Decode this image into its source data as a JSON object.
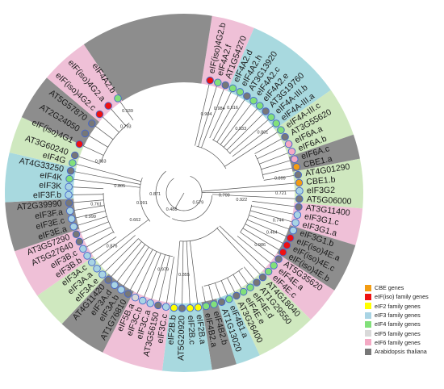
{
  "colors": {
    "CBE": "#f39c12",
    "eIFiso": "#ee1111",
    "eIF2": "#ffff00",
    "eIF3": "#a9d4e4",
    "eIF4": "#82e07a",
    "eIF5": "#d9d9d9",
    "eIF6": "#f4a9c4",
    "AT": "#777777",
    "sector_eIF3": "#a8d9df",
    "sector_eIF4": "#cfe8bf",
    "sector_eIF6": "#efc0d7",
    "sector_AT": "#8d8d8d"
  },
  "legend": [
    {
      "label": "CBE genes",
      "color": "#f39c12"
    },
    {
      "label": "eIF(iso) family genes",
      "color": "#ee1111"
    },
    {
      "label": "eIF2 family genes",
      "color": "#ffff00"
    },
    {
      "label": "eIF3 family genes",
      "color": "#a9d4e4"
    },
    {
      "label": "eIF4 family genes",
      "color": "#82e07a"
    },
    {
      "label": "eIF5 family genes",
      "color": "#d9d9d9"
    },
    {
      "label": "eIF6 family genes",
      "color": "#f4a9c4"
    },
    {
      "label": "Arabidopsis thaliana",
      "color": "#777777"
    }
  ],
  "leaves": [
    {
      "label": "eIF(iso)4G2.b",
      "angle": -77,
      "node": "eIFiso"
    },
    {
      "label": "eIF4A2.f",
      "angle": -73,
      "node": "eIF4"
    },
    {
      "label": "AT1G54270",
      "angle": -69,
      "node": "AT"
    },
    {
      "label": "eIF4A2.d",
      "angle": -65,
      "node": "eIF4"
    },
    {
      "label": "eIF4A2.h",
      "angle": -61,
      "node": "eIF4"
    },
    {
      "label": "AT3G13920",
      "angle": -57,
      "node": "AT"
    },
    {
      "label": "eIF4A2.c",
      "angle": -53,
      "node": "eIF4"
    },
    {
      "label": "eIF4A2.e",
      "angle": -49,
      "node": "eIF4"
    },
    {
      "label": "AT3G19760",
      "angle": -45,
      "node": "AT"
    },
    {
      "label": "eIF4A-III.b",
      "angle": -41,
      "node": "eIF4"
    },
    {
      "label": "eIF4A-III.a",
      "angle": -37,
      "node": "eIF4"
    },
    {
      "label": "eIF4A-III.c",
      "angle": -33,
      "node": "eIF4"
    },
    {
      "label": "AT3G55620",
      "angle": -29,
      "node": "AT"
    },
    {
      "label": "eIF6A.a",
      "angle": -25,
      "node": "eIF6"
    },
    {
      "label": "eIF6A.b",
      "angle": -21,
      "node": "eIF6"
    },
    {
      "label": "eIF6A.c",
      "angle": -17,
      "node": "eIF6"
    },
    {
      "label": "CBE1.a",
      "angle": -13,
      "node": "CBE"
    },
    {
      "label": "AT4G01290",
      "angle": -9,
      "node": "AT"
    },
    {
      "label": "CBE1.b",
      "angle": -5,
      "node": "CBE"
    },
    {
      "label": "eIF3G2",
      "angle": -1,
      "node": "eIF3"
    },
    {
      "label": "AT5G06000",
      "angle": 3,
      "node": "AT"
    },
    {
      "label": "AT3G11400",
      "angle": 7,
      "node": "AT"
    },
    {
      "label": "eIF3G1.c",
      "angle": 11,
      "node": "eIF3"
    },
    {
      "label": "eIF3G1.a",
      "angle": 15,
      "node": "eIF3"
    },
    {
      "label": "eIF3G1.b",
      "angle": 19,
      "node": "eIF3"
    },
    {
      "label": "eIF(iso)4E.a",
      "angle": 23,
      "node": "eIFiso"
    },
    {
      "label": "eIF(iso)4E.c",
      "angle": 27,
      "node": "eIFiso"
    },
    {
      "label": "eIF(iso)4E.b",
      "angle": 31,
      "node": "eIFiso"
    },
    {
      "label": "AT5G35620",
      "angle": 35,
      "node": "AT"
    },
    {
      "label": "eIF4E.a",
      "angle": 39,
      "node": "eIF4"
    },
    {
      "label": "eIF4E.c",
      "angle": 43,
      "node": "eIF4"
    },
    {
      "label": "AT4G18040",
      "angle": 47,
      "node": "AT"
    },
    {
      "label": "AT1G29550",
      "angle": 51,
      "node": "AT"
    },
    {
      "label": "eIF4E.d",
      "angle": 55,
      "node": "eIF4"
    },
    {
      "label": "eIF4E.e",
      "angle": 59,
      "node": "eIF4"
    },
    {
      "label": "AT3G26400",
      "angle": 63,
      "node": "AT"
    },
    {
      "label": "eIF4B1.a",
      "angle": 67,
      "node": "eIF4"
    },
    {
      "label": "AT1G13020",
      "angle": 71,
      "node": "AT"
    },
    {
      "label": "eIF4B2.b",
      "angle": 75,
      "node": "eIF4"
    },
    {
      "label": "eIF4B2.a",
      "angle": 79,
      "node": "eIF4"
    },
    {
      "label": "eIF2B.a",
      "angle": 83,
      "node": "eIF2"
    },
    {
      "label": "eIF2B.c",
      "angle": 87,
      "node": "eIF2"
    },
    {
      "label": "AT5G20920",
      "angle": 91,
      "node": "AT"
    },
    {
      "label": "eIF2B.b",
      "angle": 95,
      "node": "eIF2"
    },
    {
      "label": "eIF3C.c",
      "angle": 99,
      "node": "eIF3"
    },
    {
      "label": "AT3G56150",
      "angle": 103,
      "node": "AT"
    },
    {
      "label": "eIF3C.a",
      "angle": 107,
      "node": "eIF3"
    },
    {
      "label": "eIF3C.b",
      "angle": 111,
      "node": "eIF3"
    },
    {
      "label": "eIF5B.a",
      "angle": 115,
      "node": "eIF5"
    },
    {
      "label": "AT1G76810",
      "angle": 119,
      "node": "AT"
    },
    {
      "label": "eIF3A.b",
      "angle": 123,
      "node": "eIF3"
    },
    {
      "label": "eIF3A.d",
      "angle": 127,
      "node": "eIF3"
    },
    {
      "label": "AT4G11420",
      "angle": 131,
      "node": "AT"
    },
    {
      "label": "eIF3A.e",
      "angle": 135,
      "node": "eIF3"
    },
    {
      "label": "eIF3A.a",
      "angle": 139,
      "node": "eIF3"
    },
    {
      "label": "eIF3A.c",
      "angle": 143,
      "node": "eIF3"
    },
    {
      "label": "eIF3B.b",
      "angle": 147,
      "node": "eIF3"
    },
    {
      "label": "eIF3B.c",
      "angle": 151,
      "node": "eIF3"
    },
    {
      "label": "AT5G27640",
      "angle": 155,
      "node": "AT"
    },
    {
      "label": "AT3G57290",
      "angle": 159,
      "node": "AT"
    },
    {
      "label": "eIF3E.a",
      "angle": 163,
      "node": "eIF3"
    },
    {
      "label": "eIF3E.c",
      "angle": 167,
      "node": "eIF3"
    },
    {
      "label": "eIF3F.a",
      "angle": 171,
      "node": "eIF3"
    },
    {
      "label": "AT2G39990",
      "angle": 175,
      "node": "AT"
    },
    {
      "label": "eIF3F.b",
      "angle": 179,
      "node": "eIF3"
    },
    {
      "label": "eIF3K",
      "angle": 183,
      "node": "eIF3"
    },
    {
      "label": "eIF4K",
      "angle": 187,
      "node": "eIF4"
    },
    {
      "label": "AT4G33250",
      "angle": 191,
      "node": "AT"
    },
    {
      "label": "eIF4G",
      "angle": 195,
      "node": "eIF4"
    },
    {
      "label": "AT3G60240",
      "angle": 199,
      "node": "AT"
    },
    {
      "label": "eIF(iso)4G1",
      "angle": 205,
      "node": "eIFiso"
    },
    {
      "label": "AT2G24050",
      "angle": 211,
      "node": "AT"
    },
    {
      "label": "AT5G57870",
      "angle": 217,
      "node": "AT"
    },
    {
      "label": "eIF(iso)4G2.c",
      "angle": 223,
      "node": "eIFiso"
    },
    {
      "label": "eIF(iso)4G2.a",
      "angle": 229,
      "node": "eIFiso"
    },
    {
      "label": "eIF4A2.b",
      "angle": 235,
      "node": "eIF4"
    }
  ],
  "sectors": [
    {
      "start": -81,
      "end": -67,
      "fill": "sector_eIF6"
    },
    {
      "start": -67,
      "end": -35,
      "fill": "sector_eIF3"
    },
    {
      "start": -35,
      "end": -19,
      "fill": "sector_eIF4"
    },
    {
      "start": -19,
      "end": -11,
      "fill": "sector_AT"
    },
    {
      "start": -11,
      "end": 5,
      "fill": "sector_eIF4"
    },
    {
      "start": 5,
      "end": 17,
      "fill": "sector_eIF6"
    },
    {
      "start": 17,
      "end": 33,
      "fill": "sector_AT"
    },
    {
      "start": 33,
      "end": 45,
      "fill": "sector_eIF6"
    },
    {
      "start": 45,
      "end": 65,
      "fill": "sector_eIF4"
    },
    {
      "start": 65,
      "end": 73,
      "fill": "sector_eIF3"
    },
    {
      "start": 73,
      "end": 81,
      "fill": "sector_AT"
    },
    {
      "start": 81,
      "end": 97,
      "fill": "sector_eIF3"
    },
    {
      "start": 97,
      "end": 117,
      "fill": "sector_eIF6"
    },
    {
      "start": 117,
      "end": 133,
      "fill": "sector_AT"
    },
    {
      "start": 133,
      "end": 145,
      "fill": "sector_eIF4"
    },
    {
      "start": 145,
      "end": 161,
      "fill": "sector_eIF6"
    },
    {
      "start": 161,
      "end": 177,
      "fill": "sector_AT"
    },
    {
      "start": 177,
      "end": 193,
      "fill": "sector_eIF3"
    },
    {
      "start": 193,
      "end": 205,
      "fill": "sector_eIF4"
    },
    {
      "start": 205,
      "end": 220,
      "fill": "sector_AT"
    },
    {
      "start": 220,
      "end": 236,
      "fill": "sector_eIF6"
    },
    {
      "start": 236,
      "end": 279,
      "fill": "sector_AT"
    }
  ],
  "support_values": [
    {
      "text": "0.579",
      "angle": 38,
      "r": 22
    },
    {
      "text": "0.488",
      "angle": 125,
      "r": 27
    },
    {
      "text": "0.871",
      "angle": 175,
      "r": 36
    },
    {
      "text": "0.991",
      "angle": 165,
      "r": 54
    },
    {
      "text": "0.662",
      "angle": 150,
      "r": 70
    },
    {
      "text": "0.805",
      "angle": 185,
      "r": 80
    },
    {
      "text": "0.761",
      "angle": 172,
      "r": 110
    },
    {
      "text": "0.999",
      "angle": 165,
      "r": 120
    },
    {
      "text": "0.876",
      "angle": 143,
      "r": 112
    },
    {
      "text": "0.883",
      "angle": 200,
      "r": 110
    },
    {
      "text": "0.793",
      "angle": 228,
      "r": 108
    },
    {
      "text": "0.939",
      "angle": 235,
      "r": 122
    },
    {
      "text": "0.904",
      "angle": -74,
      "r": 100
    },
    {
      "text": "0.984",
      "angle": -67,
      "r": 112
    },
    {
      "text": "0.616",
      "angle": -60,
      "r": 120
    },
    {
      "text": "0.933",
      "angle": -48,
      "r": 105
    },
    {
      "text": "0.801",
      "angle": -37,
      "r": 122
    },
    {
      "text": "0.709",
      "angle": 5,
      "r": 50
    },
    {
      "text": "0.922",
      "angle": 8,
      "r": 72
    },
    {
      "text": "0.721",
      "angle": 1,
      "r": 120
    },
    {
      "text": "0.899",
      "angle": -8,
      "r": 120
    },
    {
      "text": "0.464",
      "angle": 25,
      "r": 120
    },
    {
      "text": "0.744",
      "angle": 17,
      "r": 122
    },
    {
      "text": "0.986",
      "angle": 35,
      "r": 115
    },
    {
      "text": "0.979",
      "angle": 105,
      "r": 100
    },
    {
      "text": "0.855",
      "angle": 90,
      "r": 103
    }
  ],
  "internal_arcs": [
    {
      "r": 22,
      "start": -70,
      "end": 235
    },
    {
      "r": 35,
      "start": 5,
      "end": 115
    },
    {
      "r": 35,
      "start": 120,
      "end": 230
    },
    {
      "r": 55,
      "start": 140,
      "end": 200
    },
    {
      "r": 60,
      "start": -75,
      "end": -30
    },
    {
      "r": 60,
      "start": 45,
      "end": 95
    },
    {
      "r": 75,
      "start": -62,
      "end": -40
    },
    {
      "r": 80,
      "start": 100,
      "end": 135
    },
    {
      "r": 85,
      "start": 10,
      "end": 35
    },
    {
      "r": 100,
      "start": -28,
      "end": -10
    },
    {
      "r": 100,
      "start": 150,
      "end": 180
    },
    {
      "r": 110,
      "start": 200,
      "end": 232
    },
    {
      "r": 118,
      "start": 52,
      "end": 78
    }
  ]
}
